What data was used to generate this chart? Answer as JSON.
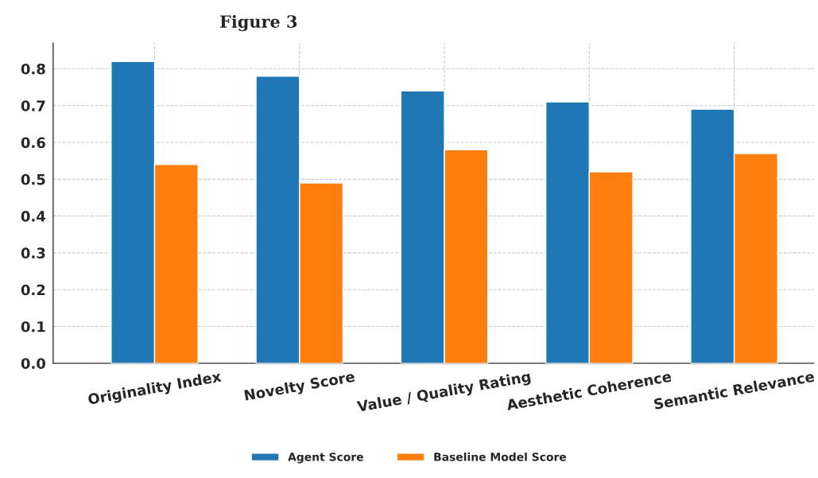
{
  "chart_data": {
    "type": "bar",
    "title": "Figure 3",
    "categories": [
      "Originality Index",
      "Novelty Score",
      "Value / Quality Rating",
      "Aesthetic Coherence",
      "Semantic Relevance"
    ],
    "series": [
      {
        "name": "Agent Score",
        "color": "#1f77b4",
        "values": [
          0.82,
          0.78,
          0.74,
          0.71,
          0.69
        ]
      },
      {
        "name": "Baseline Model Score",
        "color": "#ff7f0e",
        "values": [
          0.54,
          0.49,
          0.58,
          0.52,
          0.57
        ]
      }
    ],
    "ylim": [
      0,
      0.87
    ],
    "yticks": [
      {
        "value": 0,
        "label": "0.0"
      },
      {
        "value": 0.1,
        "label": "0.1"
      },
      {
        "value": 0.2,
        "label": "0.2"
      },
      {
        "value": 0.3,
        "label": "0.3"
      },
      {
        "value": 0.4,
        "label": "0.4"
      },
      {
        "value": 0.5,
        "label": "0.5"
      },
      {
        "value": 0.6,
        "label": "0.6"
      },
      {
        "value": 0.7,
        "label": "0.7"
      },
      {
        "value": 0.8,
        "label": "0.8"
      }
    ],
    "grid": true,
    "legend": "bottom"
  }
}
